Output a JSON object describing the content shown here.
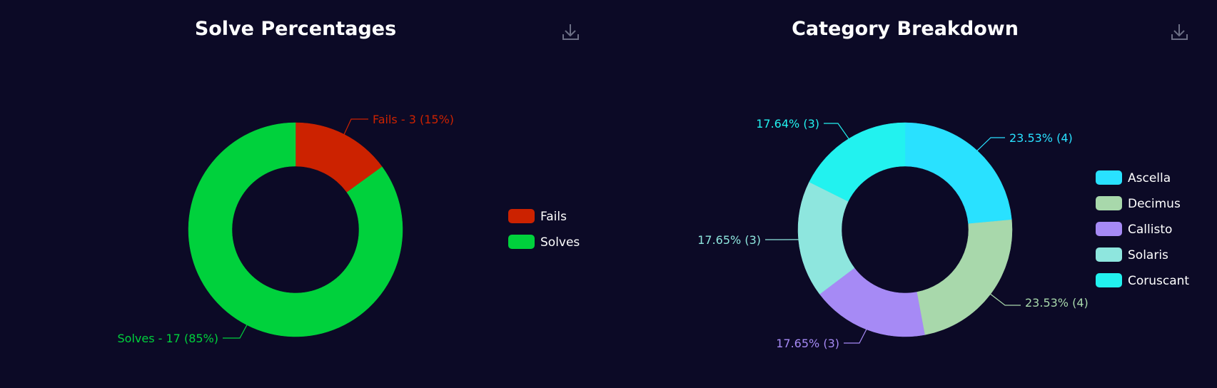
{
  "chart_data": [
    {
      "type": "pie",
      "title": "Solve Percentages",
      "donut": true,
      "legend": "right",
      "download_icon": "download-icon",
      "slices": [
        {
          "name": "Fails",
          "value": 3,
          "percent": 15,
          "color": "#cc2200",
          "label": "Fails - 3 (15%)"
        },
        {
          "name": "Solves",
          "value": 17,
          "percent": 85,
          "color": "#00d13c",
          "label": "Solves - 17 (85%)"
        }
      ]
    },
    {
      "type": "pie",
      "title": "Category Breakdown",
      "donut": true,
      "legend": "right",
      "download_icon": "download-icon",
      "slices": [
        {
          "name": "Ascella",
          "value": 4,
          "percent": 23.53,
          "color": "#29e1ff",
          "label": "23.53% (4)"
        },
        {
          "name": "Decimus",
          "value": 4,
          "percent": 23.53,
          "color": "#a8d8ab",
          "label": "23.53% (4)"
        },
        {
          "name": "Callisto",
          "value": 3,
          "percent": 17.65,
          "color": "#a68af5",
          "label": "17.65% (3)"
        },
        {
          "name": "Solaris",
          "value": 3,
          "percent": 17.65,
          "color": "#8ee6de",
          "label": "17.65% (3)"
        },
        {
          "name": "Coruscant",
          "value": 3,
          "percent": 17.64,
          "color": "#22f2ef",
          "label": "17.64% (3)"
        }
      ]
    }
  ]
}
